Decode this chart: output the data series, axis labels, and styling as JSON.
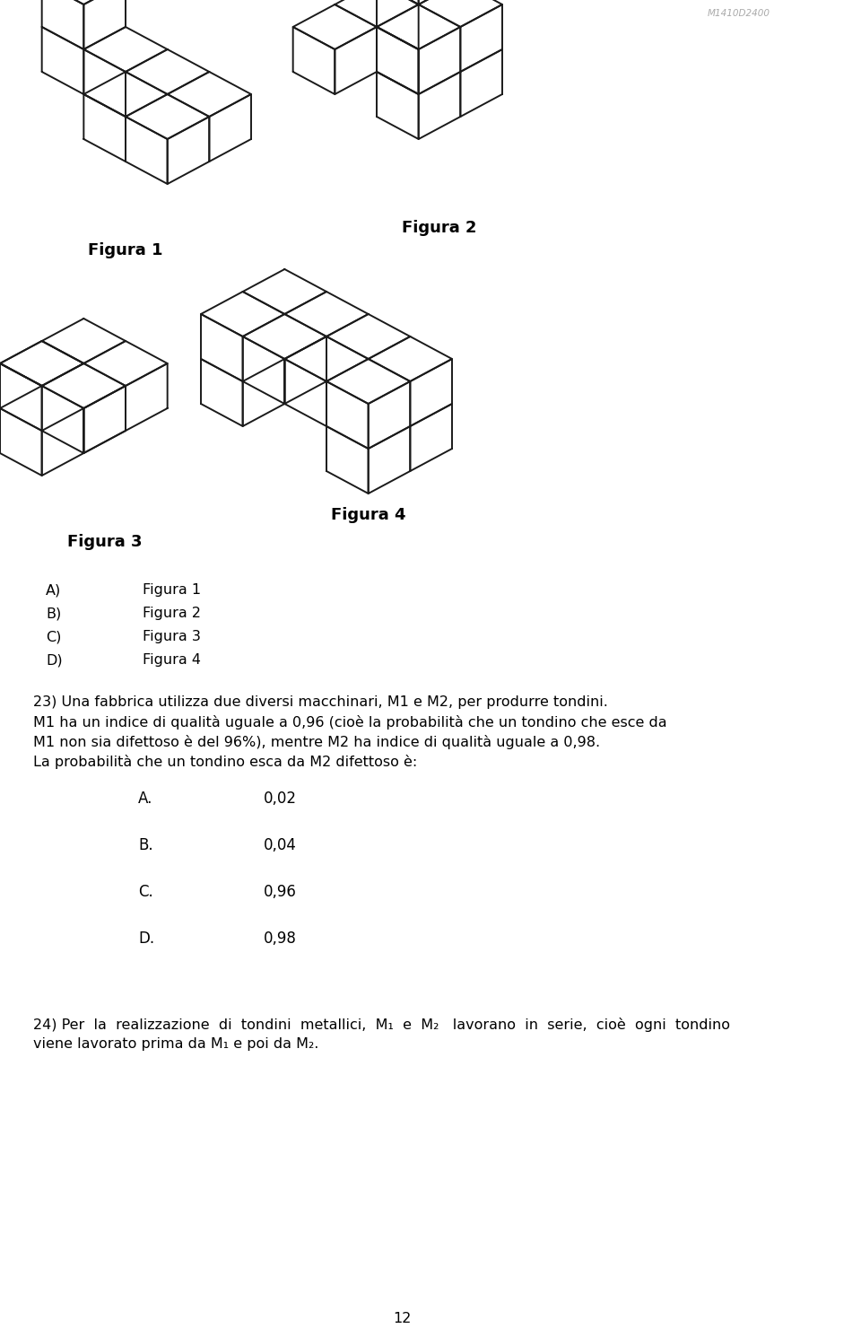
{
  "watermark": "M1410D2400",
  "bg_color": "#ffffff",
  "fig_width": 9.6,
  "fig_height": 14.9,
  "dpi": 100,
  "page_number": "12",
  "prev_question_answers_labels": [
    "A)",
    "B)",
    "C)",
    "D)"
  ],
  "prev_question_answers_values": [
    "Figura 1",
    "Figura 2",
    "Figura 3",
    "Figura 4"
  ],
  "q23_lines": [
    "23) Una fabbrica utilizza due diversi macchinari, M1 e M2, per produrre tondini.",
    "M1 ha un indice di qualità uguale a 0,96 (cioè la probabilità che un tondino che esce da",
    "M1 non sia difettoso è del 96%), mentre M2 ha indice di qualità uguale a 0,98.",
    "La probabilità che un tondino esca da M2 difettoso è:"
  ],
  "q23_options": [
    {
      "label": "A.",
      "value": "0,02"
    },
    {
      "label": "B.",
      "value": "0,04"
    },
    {
      "label": "C.",
      "value": "0,96"
    },
    {
      "label": "D.",
      "value": "0,98"
    }
  ],
  "q24_line1": "24) Per  la  realizzazione  di  tondini  metallici,  M₁  e  M₂   lavorano  in  serie,  cioè  ogni  tondino",
  "q24_line2": "viene lavorato prima da M₁ e poi da M₂.",
  "figura_labels": [
    "Figura 1",
    "Figura 2",
    "Figura 3",
    "Figura 4"
  ],
  "line_color": "#1a1a1a",
  "text_color": "#000000",
  "label_fontsize": 13,
  "body_fontsize": 11.5,
  "option_fontsize": 12
}
